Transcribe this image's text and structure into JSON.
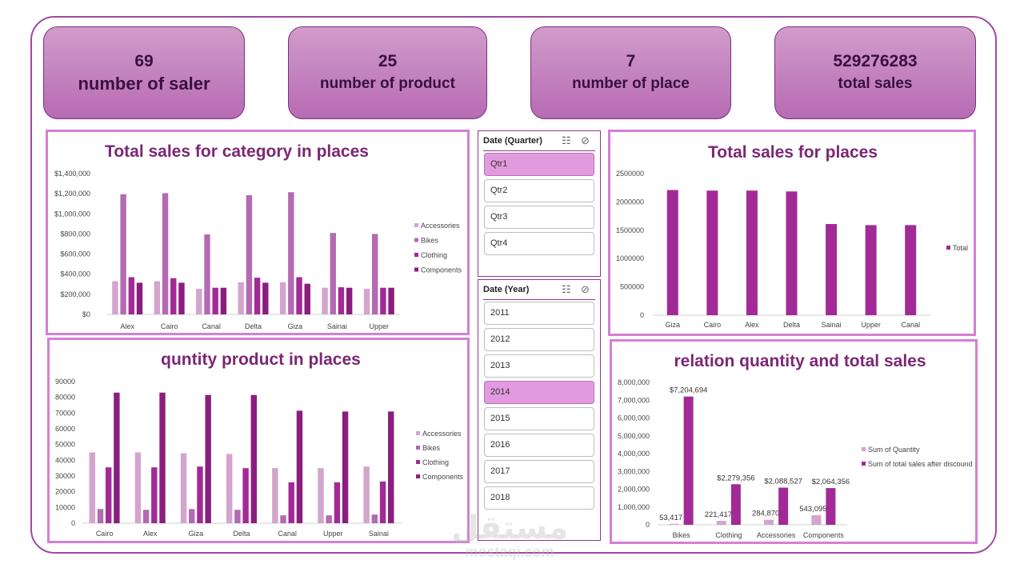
{
  "kpis": [
    {
      "value": "69",
      "label": "number of saler"
    },
    {
      "value": "25",
      "label": "number of product"
    },
    {
      "value": "7",
      "label": "number of place"
    },
    {
      "value": "529276283",
      "label": "total sales"
    }
  ],
  "slicers": {
    "quarter": {
      "title": "Date (Quarter)",
      "items": [
        "Qtr1",
        "Qtr2",
        "Qtr3",
        "Qtr4"
      ],
      "selected": "Qtr1"
    },
    "year": {
      "title": "Date (Year)",
      "items": [
        "2011",
        "2012",
        "2013",
        "2014",
        "2015",
        "2016",
        "2017",
        "2018"
      ],
      "selected": "2014"
    }
  },
  "watermark": {
    "arabic": "مستقل",
    "latin": "mostaqi.com"
  },
  "colors": {
    "accessories": "#d3a5cd",
    "bikes": "#b36ab2",
    "clothing": "#a22a96",
    "components": "#8a1e7e",
    "accent": "#a04aa4",
    "title": "#7b2775"
  },
  "chart_data": [
    {
      "id": "category_places",
      "type": "bar",
      "title": "Total sales for category in places",
      "categories": [
        "Alex",
        "Cairo",
        "Canal",
        "Delta",
        "Giza",
        "Sainai",
        "Upper"
      ],
      "series": [
        {
          "name": "Accessories",
          "color": "#d3a5cd",
          "values": [
            330000,
            330000,
            255000,
            320000,
            320000,
            265000,
            255000
          ]
        },
        {
          "name": "Bikes",
          "color": "#b36ab2",
          "values": [
            1195000,
            1205000,
            795000,
            1185000,
            1215000,
            810000,
            800000
          ]
        },
        {
          "name": "Clothing",
          "color": "#a22a96",
          "values": [
            370000,
            360000,
            265000,
            365000,
            370000,
            270000,
            265000
          ]
        },
        {
          "name": "Components",
          "color": "#8a1e7e",
          "values": [
            315000,
            315000,
            265000,
            315000,
            305000,
            265000,
            265000
          ]
        }
      ],
      "ylim": [
        0,
        1400000
      ],
      "yticks": [
        "$0",
        "$200,000",
        "$400,000",
        "$600,000",
        "$800,000",
        "$1,000,000",
        "$1,200,000",
        "$1,400,000"
      ],
      "grid": false,
      "legend": "right"
    },
    {
      "id": "sales_places",
      "type": "bar",
      "title": "Total sales for places",
      "categories": [
        "Giza",
        "Cairo",
        "Alex",
        "Delta",
        "Sainai",
        "Upper",
        "Canal"
      ],
      "series": [
        {
          "name": "Total",
          "color": "#a22a96",
          "values": [
            2210000,
            2200000,
            2200000,
            2185000,
            1610000,
            1590000,
            1590000
          ]
        }
      ],
      "ylim": [
        0,
        2500000
      ],
      "yticks": [
        "0",
        "500000",
        "1000000",
        "1500000",
        "2000000",
        "2500000"
      ],
      "grid": false,
      "legend": "right"
    },
    {
      "id": "quantity_places",
      "type": "bar",
      "title": "quntity product in places",
      "categories": [
        "Cairo",
        "Alex",
        "Giza",
        "Delta",
        "Canal",
        "Upper",
        "Sainai"
      ],
      "series": [
        {
          "name": "Accessories",
          "color": "#d3a5cd",
          "values": [
            45000,
            45000,
            44500,
            44000,
            35000,
            35000,
            36000
          ]
        },
        {
          "name": "Bikes",
          "color": "#b36ab2",
          "values": [
            9000,
            8500,
            9000,
            8500,
            5000,
            5000,
            5500
          ]
        },
        {
          "name": "Clothing",
          "color": "#a22a96",
          "values": [
            35500,
            35500,
            36000,
            35000,
            26000,
            26000,
            26500
          ]
        },
        {
          "name": "Components",
          "color": "#8a1e7e",
          "values": [
            83000,
            83000,
            81500,
            81500,
            71500,
            71000,
            71000
          ]
        }
      ],
      "ylim": [
        0,
        90000
      ],
      "yticks": [
        "0",
        "10000",
        "20000",
        "30000",
        "40000",
        "50000",
        "60000",
        "70000",
        "80000",
        "90000"
      ],
      "grid": false,
      "legend": "right"
    },
    {
      "id": "quantity_vs_sales",
      "type": "bar",
      "title": "relation quantity and total sales",
      "categories": [
        "Bikes",
        "Clothing",
        "Accessories",
        "Components"
      ],
      "series": [
        {
          "name": "Sum of Quantity",
          "color": "#d3a5cd",
          "values": [
            53417,
            221417,
            284870,
            543095
          ],
          "labels": [
            "53,417",
            "221,417",
            "284,870",
            "543,095"
          ]
        },
        {
          "name": "Sum of total sales after discound",
          "color": "#a22a96",
          "values": [
            7204694,
            2279356,
            2088527,
            2064356
          ],
          "labels": [
            "$7,204,694",
            "$2,279,356",
            "$2,088,527",
            "$2,064,356"
          ]
        }
      ],
      "ylim": [
        0,
        8000000
      ],
      "yticks": [
        "0",
        "1,000,000",
        "2,000,000",
        "3,000,000",
        "4,000,000",
        "5,000,000",
        "6,000,000",
        "7,000,000",
        "8,000,000"
      ],
      "grid": false,
      "legend": "right"
    }
  ]
}
